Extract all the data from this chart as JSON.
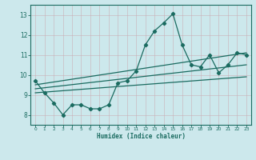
{
  "xlabel": "Humidex (Indice chaleur)",
  "bg_color": "#cce8ec",
  "grid_color_major": "#b8d4d8",
  "grid_color_minor": "#d4e8ec",
  "line_color": "#1a6b60",
  "xlim": [
    -0.5,
    23.5
  ],
  "ylim": [
    7.5,
    13.5
  ],
  "x_ticks": [
    0,
    1,
    2,
    3,
    4,
    5,
    6,
    7,
    8,
    9,
    10,
    11,
    12,
    13,
    14,
    15,
    16,
    17,
    18,
    19,
    20,
    21,
    22,
    23
  ],
  "y_ticks": [
    8,
    9,
    10,
    11,
    12,
    13
  ],
  "series1_x": [
    0,
    1,
    2,
    3,
    4,
    5,
    6,
    7,
    8,
    9,
    10,
    11,
    12,
    13,
    14,
    15,
    16,
    17,
    18,
    19,
    20,
    21,
    22,
    23
  ],
  "series1_y": [
    9.7,
    9.1,
    8.6,
    8.0,
    8.5,
    8.5,
    8.3,
    8.3,
    8.5,
    9.6,
    9.7,
    10.2,
    11.5,
    12.2,
    12.6,
    13.05,
    11.5,
    10.5,
    10.4,
    11.0,
    10.1,
    10.5,
    11.1,
    11.0
  ],
  "series2_x": [
    0,
    23
  ],
  "series2_y": [
    9.1,
    9.9
  ],
  "series3_x": [
    0,
    23
  ],
  "series3_y": [
    9.3,
    10.5
  ],
  "series4_x": [
    0,
    23
  ],
  "series4_y": [
    9.5,
    11.1
  ]
}
